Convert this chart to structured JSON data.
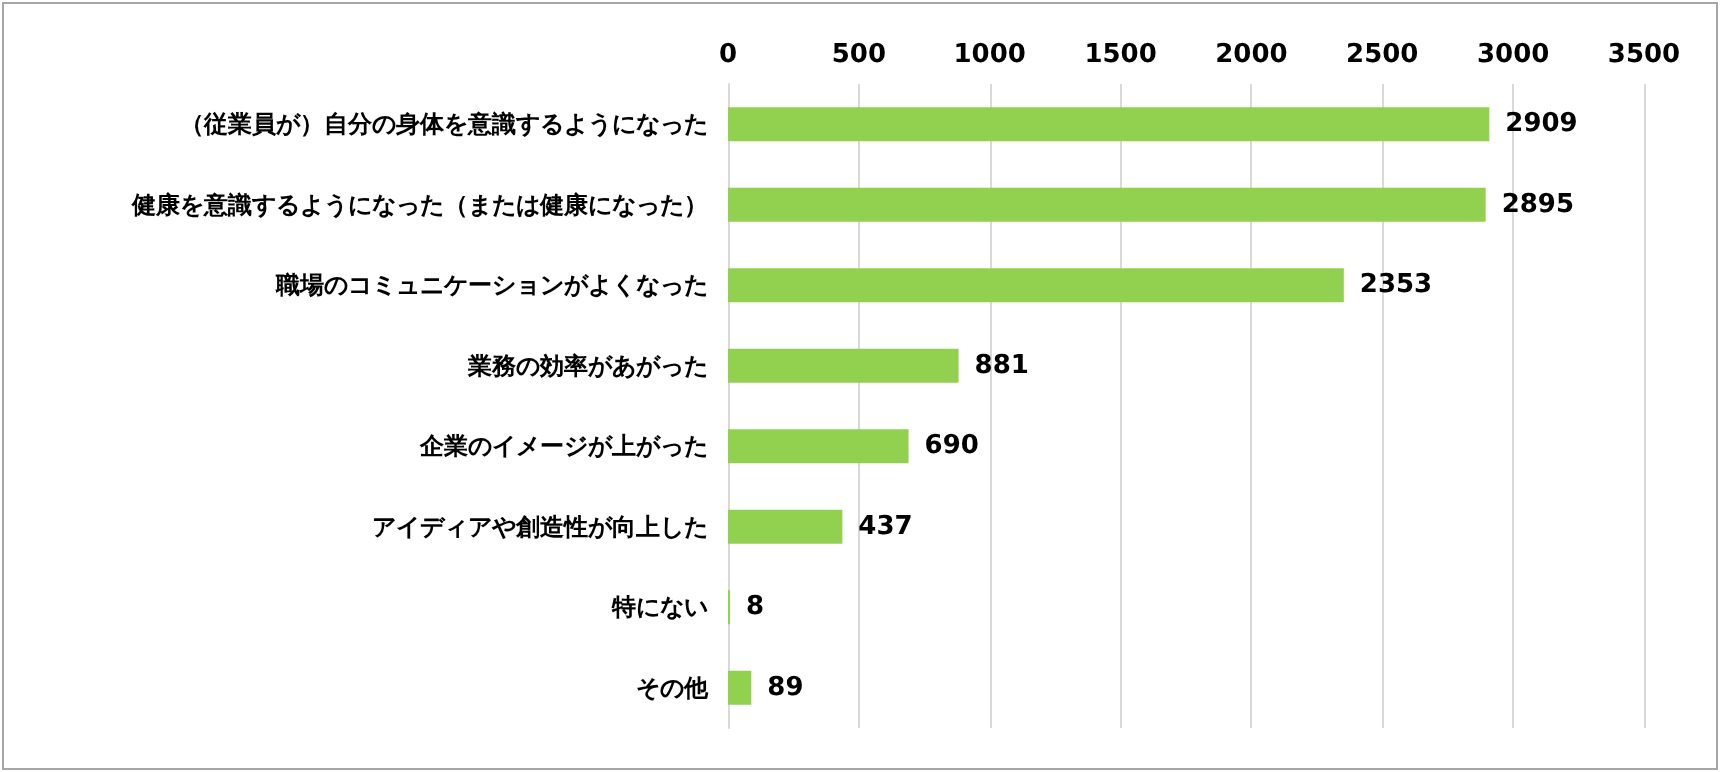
{
  "chart_data": {
    "type": "bar",
    "orientation": "horizontal",
    "categories": [
      "（従業員が）自分の身体を意識するようになった",
      "健康を意識するようになった（または健康になった）",
      "職場のコミュニケーションがよくなった",
      "業務の効率があがった",
      "企業のイメージが上がった",
      "アイディアや創造性が向上した",
      "特にない",
      "その他"
    ],
    "values": [
      2909,
      2895,
      2353,
      881,
      690,
      437,
      8,
      89
    ],
    "color": "#92d050",
    "xlim": [
      0,
      3500
    ],
    "xticks": [
      0,
      500,
      1000,
      1500,
      2000,
      2500,
      3000,
      3500
    ],
    "grid": "x",
    "data_labels": true
  }
}
